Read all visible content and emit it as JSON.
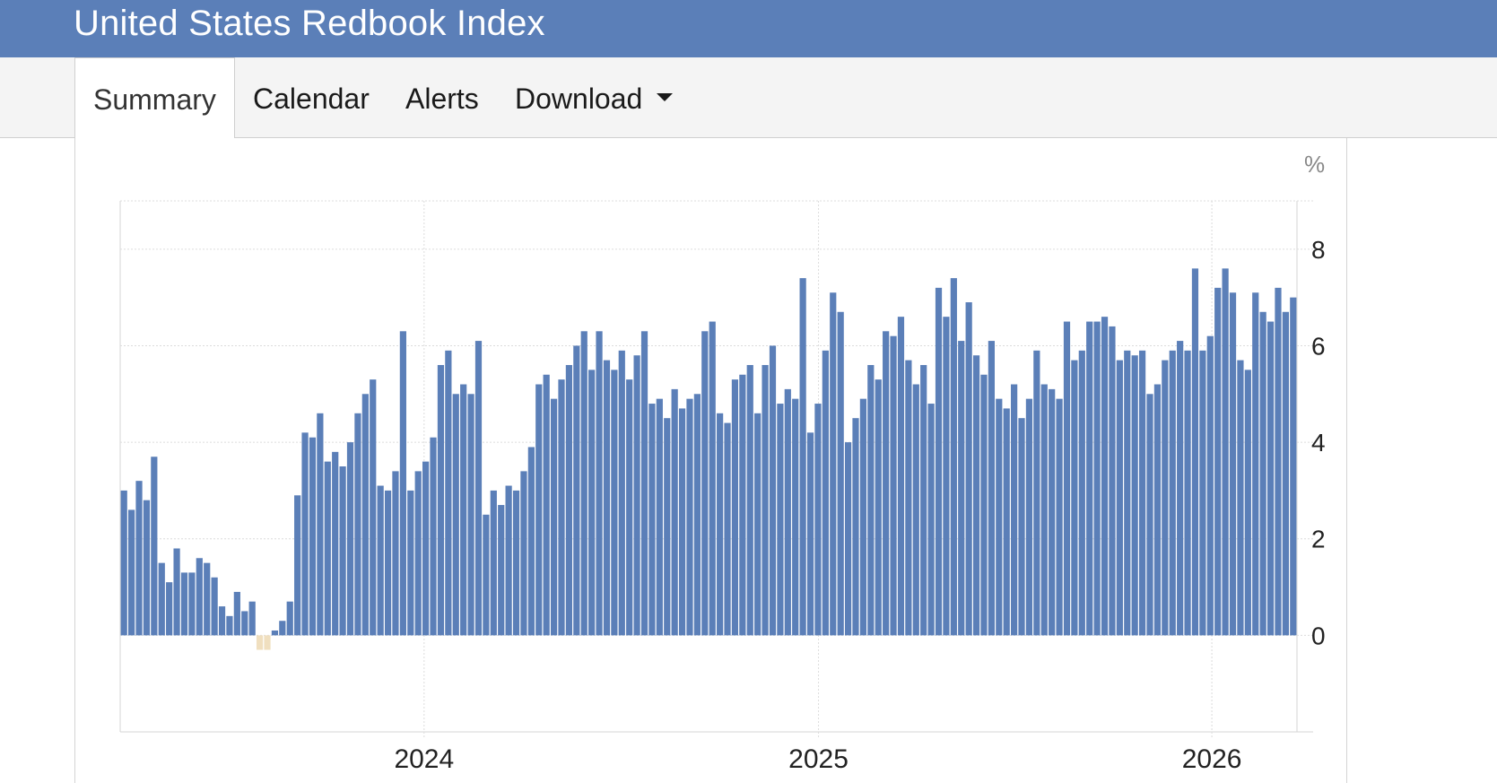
{
  "header": {
    "title": "United States Redbook Index"
  },
  "tabs": [
    {
      "label": "Summary",
      "active": true
    },
    {
      "label": "Calendar"
    },
    {
      "label": "Alerts"
    },
    {
      "label": "Download",
      "icon": "caret-down-icon"
    }
  ],
  "colors": {
    "header": "#5b7fb8",
    "bar": "#5b7fb8",
    "negative_bar": "#f0dfbf"
  },
  "chart_data": {
    "type": "bar",
    "unit": "%",
    "ylim": [
      -2,
      9
    ],
    "yticks": [
      0,
      2,
      4,
      6,
      8
    ],
    "xticks": [
      "2024",
      "2025",
      "2026"
    ],
    "grid": true,
    "x_start": "2023-03-25",
    "x_end": "2026-03-21",
    "series": [
      {
        "values": [
          3.0,
          2.6,
          3.2,
          2.8,
          3.7,
          1.5,
          1.1,
          1.8,
          1.3,
          1.3,
          1.6,
          1.5,
          1.2,
          0.6,
          0.4,
          0.9,
          0.5,
          0.7,
          -0.3,
          -0.3,
          0.1,
          0.3,
          0.7,
          2.9,
          4.2,
          4.1,
          4.6,
          3.6,
          3.8,
          3.5,
          4.0,
          4.6,
          5.0,
          5.3,
          3.1,
          3.0,
          3.4,
          6.3,
          3.0,
          3.4,
          3.6,
          4.1,
          5.6,
          5.9,
          5.0,
          5.2,
          5.0,
          6.1,
          2.5,
          3.0,
          2.7,
          3.1,
          3.0,
          3.4,
          3.9,
          5.2,
          5.4,
          4.9,
          5.3,
          5.6,
          6.0,
          6.3,
          5.5,
          6.3,
          5.7,
          5.5,
          5.9,
          5.3,
          5.8,
          6.3,
          4.8,
          4.9,
          4.5,
          5.1,
          4.7,
          4.9,
          5.0,
          6.3,
          6.5,
          4.6,
          4.4,
          5.3,
          5.4,
          5.6,
          4.6,
          5.6,
          6.0,
          4.8,
          5.1,
          4.9,
          7.4,
          4.2,
          4.8,
          5.9,
          7.1,
          6.7,
          4.0,
          4.5,
          4.9,
          5.6,
          5.3,
          6.3,
          6.2,
          6.6,
          5.7,
          5.2,
          5.6,
          4.8,
          7.2,
          6.6,
          7.4,
          6.1,
          6.9,
          5.8,
          5.4,
          6.1,
          4.9,
          4.7,
          5.2,
          4.5,
          4.9,
          5.9,
          5.2,
          5.1,
          4.9,
          6.5,
          5.7,
          5.9,
          6.5,
          6.5,
          6.6,
          6.4,
          5.7,
          5.9,
          5.8,
          5.9,
          5.0,
          5.2,
          5.7,
          5.9,
          6.1,
          5.9,
          7.6,
          5.9,
          6.2,
          7.2,
          7.6,
          7.1,
          5.7,
          5.5,
          7.1,
          6.7,
          6.5,
          7.2,
          6.7,
          7.0
        ]
      }
    ]
  }
}
